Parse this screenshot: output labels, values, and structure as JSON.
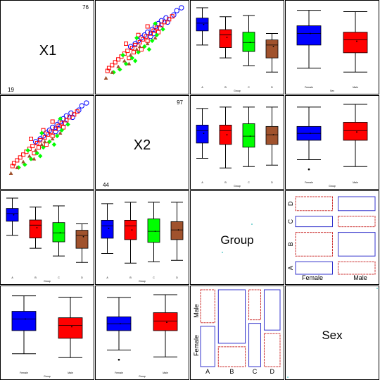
{
  "chart_data": {
    "type": "scatterplot-matrix",
    "variables": [
      "X1",
      "X2",
      "Group",
      "Sex"
    ],
    "colors": {
      "A": "#0000ff",
      "B": "#ff0000",
      "C": "#00ff00",
      "D": "#a0522d",
      "Female": "#0000ff",
      "Male": "#ff0000",
      "frame": "#000000",
      "mosaic_pos": "#3333cc",
      "mosaic_neg": "#cc3333"
    },
    "diagonal": {
      "X1": {
        "label": "X1",
        "min_label": "19",
        "max_label": "76",
        "range": [
          19,
          76
        ]
      },
      "X2": {
        "label": "X2",
        "min_label": "44",
        "max_label": "97",
        "range": [
          44,
          97
        ]
      },
      "Group": {
        "label": "Group"
      },
      "Sex": {
        "label": "Sex"
      }
    },
    "group_categories": [
      "A",
      "B",
      "C",
      "D"
    ],
    "sex_categories": [
      "Female",
      "Male"
    ],
    "group_axis_label": "Group",
    "sex_axis_label": "Sex",
    "boxplots_by_group": {
      "X1": [
        {
          "group": "A",
          "whisker_low": 47,
          "q1": 58,
          "median": 64,
          "q3": 68,
          "whisker_high": 76,
          "mean": 63
        },
        {
          "group": "B",
          "whisker_low": 37,
          "q1": 45,
          "median": 55,
          "q3": 59,
          "whisker_high": 69,
          "mean": 53
        },
        {
          "group": "C",
          "whisker_low": 31,
          "q1": 42,
          "median": 49,
          "q3": 57,
          "whisker_high": 70,
          "mean": 49
        },
        {
          "group": "D",
          "whisker_low": 26,
          "q1": 37,
          "median": 47,
          "q3": 51,
          "whisker_high": 56,
          "mean": 46
        }
      ],
      "X2": [
        {
          "group": "A",
          "whisker_low": 57,
          "q1": 68,
          "median": 77,
          "q3": 81,
          "whisker_high": 93,
          "mean": 75
        },
        {
          "group": "B",
          "whisker_low": 50,
          "q1": 67,
          "median": 77,
          "q3": 81,
          "whisker_high": 94,
          "mean": 74
        },
        {
          "group": "C",
          "whisker_low": 51,
          "q1": 65,
          "median": 73,
          "q3": 82,
          "whisker_high": 94,
          "mean": 73
        },
        {
          "group": "D",
          "whisker_low": 52,
          "q1": 67,
          "median": 74,
          "q3": 80,
          "whisker_high": 94,
          "mean": 74
        }
      ]
    },
    "boxplots_by_sex": {
      "X1": [
        {
          "sex": "Female",
          "whisker_low": 29,
          "q1": 47,
          "median": 56,
          "q3": 62,
          "whisker_high": 74,
          "mean": 56
        },
        {
          "sex": "Male",
          "whisker_low": 26,
          "q1": 41,
          "median": 51,
          "q3": 57,
          "whisker_high": 73,
          "mean": 50
        }
      ],
      "X2": [
        {
          "sex": "Female",
          "whisker_low": 56,
          "q1": 70,
          "median": 75,
          "q3": 80,
          "whisker_high": 94,
          "mean": 75,
          "outliers": [
            49
          ]
        },
        {
          "sex": "Male",
          "whisker_low": 51,
          "q1": 70,
          "median": 77,
          "q3": 83,
          "whisker_high": 96,
          "mean": 76
        }
      ]
    },
    "mosaic_group_by_sex": [
      {
        "group": "A",
        "sex": "Female",
        "share": 0.55,
        "residual": "positive"
      },
      {
        "group": "A",
        "sex": "Male",
        "share": 0.45,
        "residual": "negative"
      },
      {
        "group": "B",
        "sex": "Female",
        "share": 0.27,
        "residual": "negative"
      },
      {
        "group": "B",
        "sex": "Male",
        "share": 0.73,
        "residual": "positive"
      },
      {
        "group": "C",
        "sex": "Female",
        "share": 0.59,
        "residual": "positive"
      },
      {
        "group": "C",
        "sex": "Male",
        "share": 0.41,
        "residual": "negative"
      },
      {
        "group": "D",
        "sex": "Female",
        "share": 0.45,
        "residual": "negative"
      },
      {
        "group": "D",
        "sex": "Male",
        "share": 0.55,
        "residual": "positive"
      }
    ],
    "mosaic_group_widths": {
      "A": 0.18,
      "B": 0.34,
      "C": 0.15,
      "D": 0.2
    },
    "scatter_points": [
      {
        "x": 75,
        "y": 96,
        "g": "A"
      },
      {
        "x": 73,
        "y": 93,
        "g": "A"
      },
      {
        "x": 70,
        "y": 91,
        "g": "A"
      },
      {
        "x": 68,
        "y": 86,
        "g": "A"
      },
      {
        "x": 66,
        "y": 83,
        "g": "A"
      },
      {
        "x": 64,
        "y": 81,
        "g": "A"
      },
      {
        "x": 62,
        "y": 79,
        "g": "A"
      },
      {
        "x": 60,
        "y": 77,
        "g": "A"
      },
      {
        "x": 58,
        "y": 74,
        "g": "A"
      },
      {
        "x": 56,
        "y": 72,
        "g": "A"
      },
      {
        "x": 54,
        "y": 70,
        "g": "A"
      },
      {
        "x": 52,
        "y": 68,
        "g": "A"
      },
      {
        "x": 61,
        "y": 82,
        "g": "A"
      },
      {
        "x": 65,
        "y": 87,
        "g": "A"
      },
      {
        "x": 57,
        "y": 78,
        "g": "A"
      },
      {
        "x": 50,
        "y": 66,
        "g": "A"
      },
      {
        "x": 48,
        "y": 63,
        "g": "A"
      },
      {
        "x": 55,
        "y": 76,
        "g": "A"
      },
      {
        "x": 69,
        "y": 90,
        "g": "B"
      },
      {
        "x": 67,
        "y": 88,
        "g": "B"
      },
      {
        "x": 65,
        "y": 85,
        "g": "B"
      },
      {
        "x": 63,
        "y": 83,
        "g": "B"
      },
      {
        "x": 61,
        "y": 80,
        "g": "B"
      },
      {
        "x": 59,
        "y": 78,
        "g": "B"
      },
      {
        "x": 57,
        "y": 76,
        "g": "B"
      },
      {
        "x": 55,
        "y": 73,
        "g": "B"
      },
      {
        "x": 53,
        "y": 71,
        "g": "B"
      },
      {
        "x": 51,
        "y": 69,
        "g": "B"
      },
      {
        "x": 49,
        "y": 66,
        "g": "B"
      },
      {
        "x": 47,
        "y": 64,
        "g": "B"
      },
      {
        "x": 45,
        "y": 61,
        "g": "B"
      },
      {
        "x": 43,
        "y": 59,
        "g": "B"
      },
      {
        "x": 41,
        "y": 57,
        "g": "B"
      },
      {
        "x": 39,
        "y": 55,
        "g": "B"
      },
      {
        "x": 37,
        "y": 53,
        "g": "B"
      },
      {
        "x": 35,
        "y": 51,
        "g": "B"
      },
      {
        "x": 33,
        "y": 49,
        "g": "B"
      },
      {
        "x": 31,
        "y": 48,
        "g": "B"
      },
      {
        "x": 56,
        "y": 68,
        "g": "B"
      },
      {
        "x": 52,
        "y": 74,
        "g": "B"
      },
      {
        "x": 46,
        "y": 70,
        "g": "B"
      },
      {
        "x": 44,
        "y": 65,
        "g": "B"
      },
      {
        "x": 58,
        "y": 81,
        "g": "B"
      },
      {
        "x": 62,
        "y": 74,
        "g": "B"
      },
      {
        "x": 50,
        "y": 60,
        "g": "B"
      },
      {
        "x": 40,
        "y": 62,
        "g": "B"
      },
      {
        "x": 64,
        "y": 79,
        "g": "C"
      },
      {
        "x": 60,
        "y": 84,
        "g": "C"
      },
      {
        "x": 56,
        "y": 80,
        "g": "C"
      },
      {
        "x": 52,
        "y": 77,
        "g": "C"
      },
      {
        "x": 48,
        "y": 72,
        "g": "C"
      },
      {
        "x": 44,
        "y": 68,
        "g": "C"
      },
      {
        "x": 40,
        "y": 64,
        "g": "C"
      },
      {
        "x": 36,
        "y": 60,
        "g": "C"
      },
      {
        "x": 32,
        "y": 56,
        "g": "C"
      },
      {
        "x": 46,
        "y": 75,
        "g": "C"
      },
      {
        "x": 42,
        "y": 58,
        "g": "C"
      },
      {
        "x": 38,
        "y": 66,
        "g": "C"
      },
      {
        "x": 54,
        "y": 67,
        "g": "C"
      },
      {
        "x": 30,
        "y": 52,
        "g": "C"
      },
      {
        "x": 54,
        "y": 79,
        "g": "D"
      },
      {
        "x": 50,
        "y": 74,
        "g": "D"
      },
      {
        "x": 46,
        "y": 67,
        "g": "D"
      },
      {
        "x": 42,
        "y": 63,
        "g": "D"
      },
      {
        "x": 38,
        "y": 59,
        "g": "D"
      },
      {
        "x": 34,
        "y": 55,
        "g": "D"
      },
      {
        "x": 30,
        "y": 51,
        "g": "D"
      },
      {
        "x": 26,
        "y": 47,
        "g": "D"
      },
      {
        "x": 48,
        "y": 69,
        "g": "D"
      },
      {
        "x": 36,
        "y": 62,
        "g": "D"
      }
    ]
  }
}
